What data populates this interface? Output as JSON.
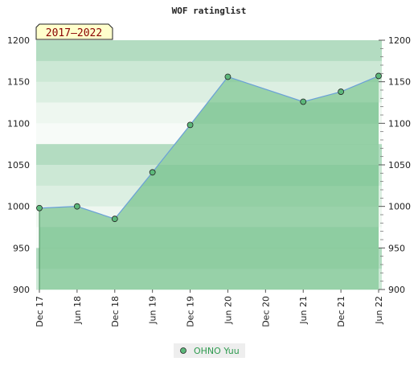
{
  "chart_data": {
    "type": "area",
    "title": "WOF ratinglist",
    "badge": "2017–2022",
    "x_ticks": [
      "Dec 17",
      "Jun 18",
      "Dec 18",
      "Jun 19",
      "Dec 19",
      "Jun 20",
      "Dec 20",
      "Jun 21",
      "Dec 21",
      "Jun 22"
    ],
    "ylim": [
      900,
      1200
    ],
    "y_ticks": [
      900,
      950,
      1000,
      1050,
      1100,
      1150,
      1200
    ],
    "series": [
      {
        "name": "OHNO Yuu",
        "x": [
          "Dec 17",
          "Jun 18",
          "Dec 18",
          "Jun 19",
          "Dec 19",
          "Jun 20",
          "Jun 21",
          "Dec 21",
          "Jun 22"
        ],
        "values": [
          998,
          1000,
          985,
          1041,
          1098,
          1156,
          1126,
          1138,
          1157
        ]
      }
    ],
    "legend_position": "bottom-center",
    "colors": {
      "line": "#6aa0d8",
      "marker": "#5cb87a",
      "area": "#8fce9f",
      "legend_text": "#2e9b4f",
      "badge_bg": "#ffffcc",
      "badge_text": "#8b0000"
    }
  }
}
